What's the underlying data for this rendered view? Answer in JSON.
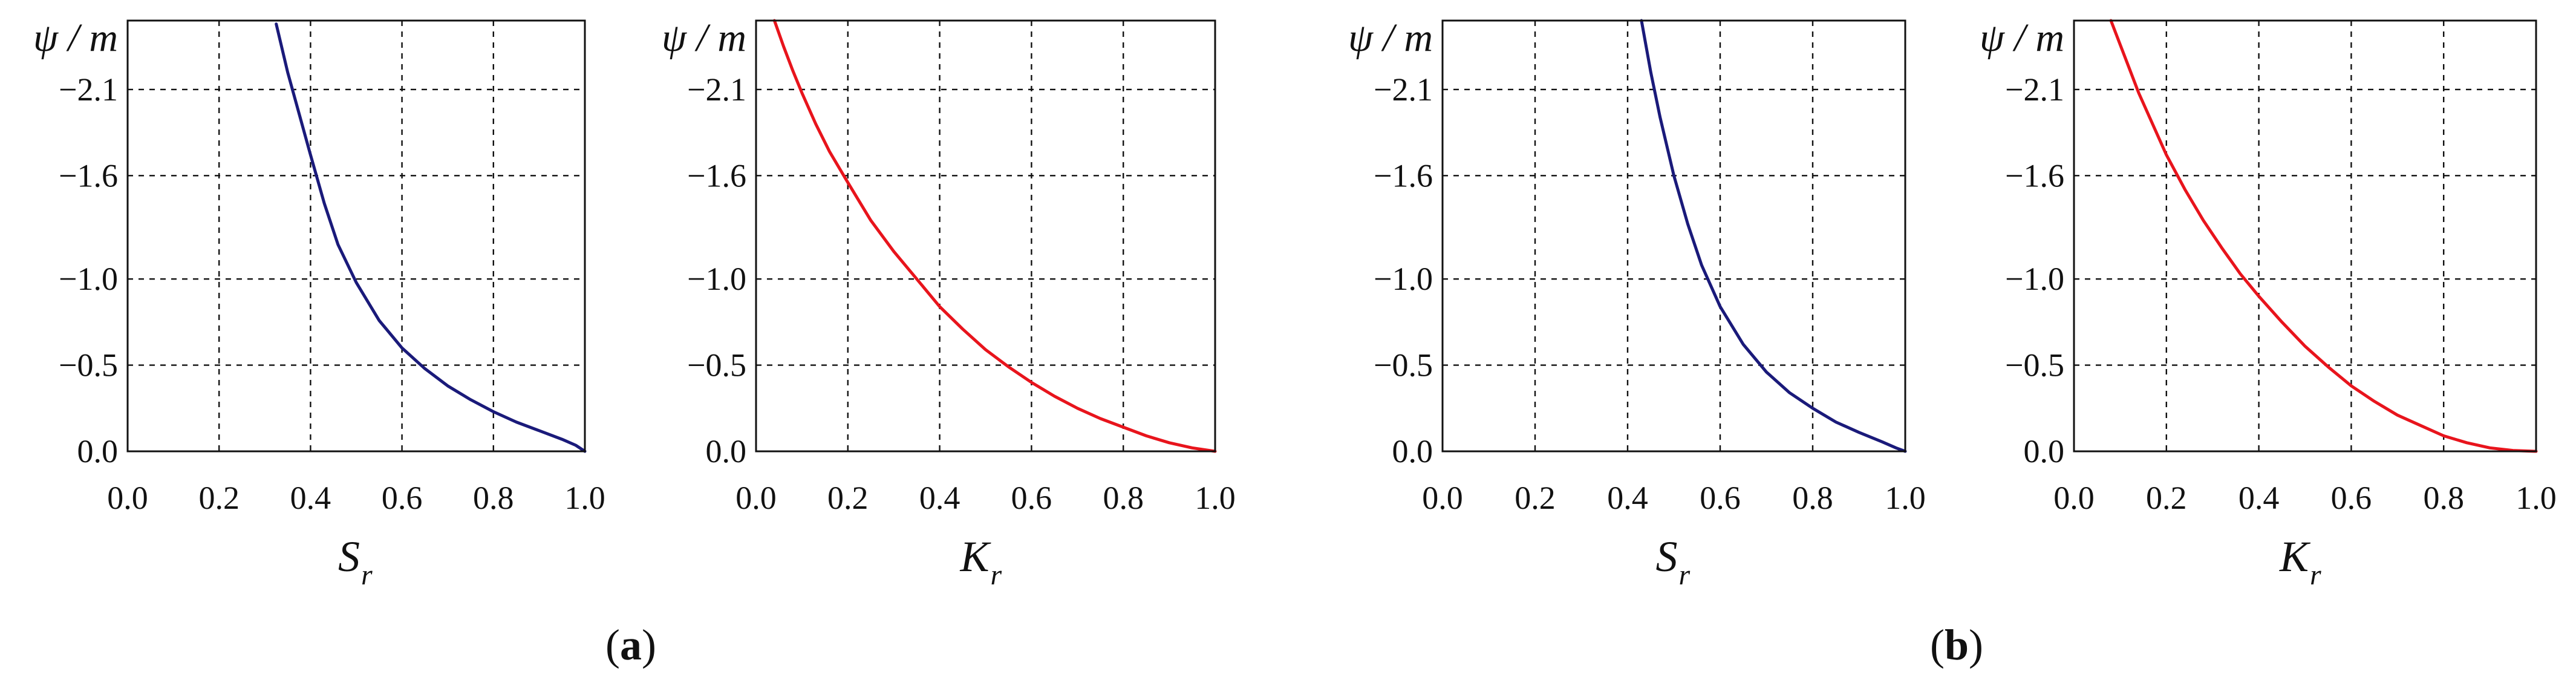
{
  "panels": [
    {
      "label": "a"
    },
    {
      "label": "b"
    }
  ],
  "colors": {
    "saturation_curve": "#1a1a7a",
    "conductivity_curve": "#e8141c",
    "grid": "#111111",
    "frame": "#111111"
  },
  "chart_data": [
    {
      "type": "line",
      "panel": "a",
      "title": "",
      "ylabel": "ψ / m",
      "xlabel": "S",
      "xlabel_sub": "r",
      "xlim": [
        0.0,
        1.0
      ],
      "ylim": [
        0.0,
        -2.5
      ],
      "grid": true,
      "xticks": [
        "0.0",
        "0.2",
        "0.4",
        "0.6",
        "0.8",
        "1.0"
      ],
      "yticks": [
        "0.0",
        "−0.5",
        "−1.0",
        "−1.6",
        "−2.1"
      ],
      "ytick_values": [
        0.0,
        -0.5,
        -1.0,
        -1.6,
        -2.1
      ],
      "series": [
        {
          "color": "#1a1a7a",
          "x": [
            0.325,
            0.35,
            0.375,
            0.4,
            0.43,
            0.46,
            0.5,
            0.55,
            0.6,
            0.65,
            0.7,
            0.75,
            0.8,
            0.85,
            0.9,
            0.95,
            0.98,
            1.0
          ],
          "y": [
            -2.48,
            -2.2,
            -1.96,
            -1.72,
            -1.44,
            -1.2,
            -0.98,
            -0.76,
            -0.6,
            -0.48,
            -0.38,
            -0.3,
            -0.23,
            -0.17,
            -0.12,
            -0.07,
            -0.035,
            0.0
          ]
        }
      ]
    },
    {
      "type": "line",
      "panel": "a",
      "title": "",
      "ylabel": "ψ / m",
      "xlabel": "K",
      "xlabel_sub": "r",
      "xlim": [
        0.0,
        1.0
      ],
      "ylim": [
        0.0,
        -2.5
      ],
      "grid": true,
      "xticks": [
        "0.0",
        "0.2",
        "0.4",
        "0.6",
        "0.8",
        "1.0"
      ],
      "yticks": [
        "0.0",
        "−0.5",
        "−1.0",
        "−1.6",
        "−2.1"
      ],
      "ytick_values": [
        0.0,
        -0.5,
        -1.0,
        -1.6,
        -2.1
      ],
      "series": [
        {
          "color": "#e8141c",
          "x": [
            0.04,
            0.06,
            0.08,
            0.1,
            0.13,
            0.16,
            0.2,
            0.25,
            0.3,
            0.35,
            0.4,
            0.45,
            0.5,
            0.55,
            0.6,
            0.65,
            0.7,
            0.75,
            0.8,
            0.85,
            0.9,
            0.95,
            1.0
          ],
          "y": [
            -2.5,
            -2.35,
            -2.21,
            -2.08,
            -1.9,
            -1.74,
            -1.56,
            -1.34,
            -1.16,
            -1.0,
            -0.84,
            -0.71,
            -0.59,
            -0.49,
            -0.4,
            -0.32,
            -0.25,
            -0.19,
            -0.14,
            -0.09,
            -0.05,
            -0.02,
            0.0
          ]
        }
      ]
    },
    {
      "type": "line",
      "panel": "b",
      "title": "",
      "ylabel": "ψ / m",
      "xlabel": "S",
      "xlabel_sub": "r",
      "xlim": [
        0.0,
        1.0
      ],
      "ylim": [
        0.0,
        -2.5
      ],
      "grid": true,
      "xticks": [
        "0.0",
        "0.2",
        "0.4",
        "0.6",
        "0.8",
        "1.0"
      ],
      "yticks": [
        "0.0",
        "−0.5",
        "−1.0",
        "−1.6",
        "−2.1"
      ],
      "ytick_values": [
        0.0,
        -0.5,
        -1.0,
        -1.6,
        -2.1
      ],
      "series": [
        {
          "color": "#1a1a7a",
          "x": [
            0.43,
            0.45,
            0.47,
            0.5,
            0.53,
            0.56,
            0.6,
            0.65,
            0.7,
            0.75,
            0.8,
            0.85,
            0.9,
            0.95,
            0.98,
            1.0
          ],
          "y": [
            -2.5,
            -2.2,
            -1.94,
            -1.6,
            -1.32,
            -1.08,
            -0.84,
            -0.62,
            -0.46,
            -0.34,
            -0.25,
            -0.17,
            -0.11,
            -0.055,
            -0.02,
            0.0
          ]
        }
      ]
    },
    {
      "type": "line",
      "panel": "b",
      "title": "",
      "ylabel": "ψ / m",
      "xlabel": "K",
      "xlabel_sub": "r",
      "xlim": [
        0.0,
        1.0
      ],
      "ylim": [
        0.0,
        -2.5
      ],
      "grid": true,
      "xticks": [
        "0.0",
        "0.2",
        "0.4",
        "0.6",
        "0.8",
        "1.0"
      ],
      "yticks": [
        "0.0",
        "−0.5",
        "−1.0",
        "−1.6",
        "−2.1"
      ],
      "ytick_values": [
        0.0,
        -0.5,
        -1.0,
        -1.6,
        -2.1
      ],
      "series": [
        {
          "color": "#e8141c",
          "x": [
            0.08,
            0.1,
            0.12,
            0.14,
            0.17,
            0.2,
            0.24,
            0.28,
            0.32,
            0.36,
            0.4,
            0.45,
            0.5,
            0.55,
            0.6,
            0.65,
            0.7,
            0.75,
            0.8,
            0.85,
            0.9,
            0.95,
            1.0
          ],
          "y": [
            -2.5,
            -2.36,
            -2.22,
            -2.08,
            -1.9,
            -1.72,
            -1.52,
            -1.34,
            -1.18,
            -1.03,
            -0.9,
            -0.75,
            -0.61,
            -0.49,
            -0.38,
            -0.29,
            -0.21,
            -0.15,
            -0.09,
            -0.05,
            -0.02,
            -0.005,
            0.0
          ]
        }
      ]
    }
  ]
}
